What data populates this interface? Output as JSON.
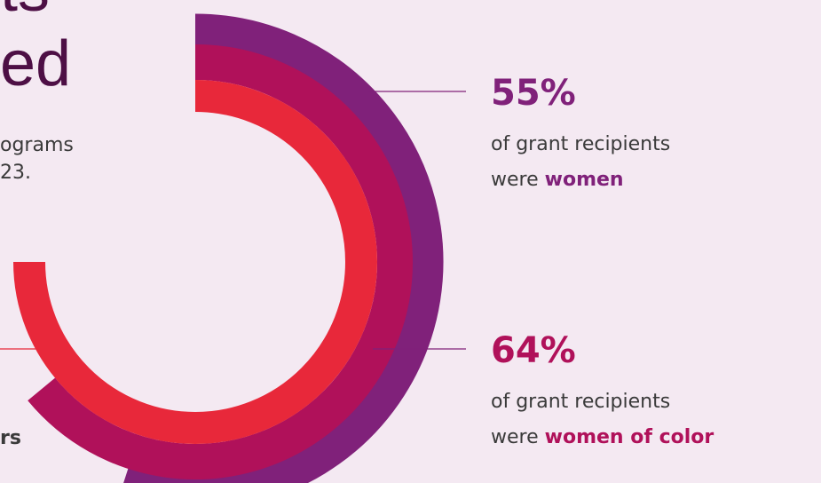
{
  "chart_data": {
    "type": "radial-bar",
    "title_lines": [
      "ts",
      "ed"
    ],
    "subtitle_lines": [
      "ograms",
      "23."
    ],
    "ylim": [
      0,
      100
    ],
    "values": [
      55,
      64,
      75
    ],
    "value_labels": [
      "55%",
      "64%",
      null
    ],
    "colors": [
      "#80217a",
      "#b0115a",
      "#e8283a"
    ],
    "captions": [
      {
        "line1": "of grant recipients",
        "prefix": "were",
        "emphasis": "women"
      },
      {
        "line1": "of grant recipients",
        "prefix": "were",
        "emphasis": "women of color"
      },
      {
        "emphasis": "rs"
      }
    ]
  }
}
